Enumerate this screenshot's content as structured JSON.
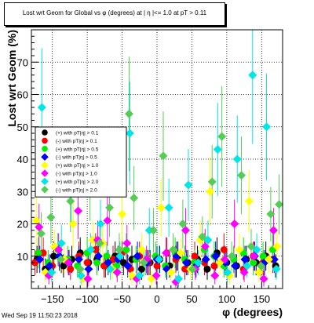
{
  "chart_data": {
    "type": "scatter",
    "title": "Lost wrt Geom for Global vs φ (degrees) at | η |<= 1.0 at pT > 0.11",
    "xlabel": "φ (degrees)",
    "ylabel": "Lost wrt Geom (%)",
    "xlim": [
      -180,
      180
    ],
    "ylim": [
      0,
      80
    ],
    "x_ticks": [
      -150,
      -100,
      -50,
      0,
      50,
      100,
      150
    ],
    "y_ticks": [
      10,
      20,
      30,
      40,
      50,
      60,
      70
    ],
    "grid": true,
    "legend_placement": "center-left",
    "series": [
      {
        "name": "(+) with pT|η| > 0.1",
        "color": "#000000",
        "marker": "circle",
        "points": [
          [
            -172,
            9
          ],
          [
            -160,
            6
          ],
          [
            -148,
            10
          ],
          [
            -134,
            7
          ],
          [
            -122,
            9
          ],
          [
            -110,
            11
          ],
          [
            -98,
            8
          ],
          [
            -86,
            9
          ],
          [
            -74,
            7
          ],
          [
            -60,
            10
          ],
          [
            -48,
            8
          ],
          [
            -36,
            9
          ],
          [
            -22,
            6
          ],
          [
            -10,
            8
          ],
          [
            4,
            9
          ],
          [
            18,
            7
          ],
          [
            30,
            10
          ],
          [
            44,
            8
          ],
          [
            58,
            9
          ],
          [
            72,
            6
          ],
          [
            86,
            11
          ],
          [
            100,
            8
          ],
          [
            114,
            7
          ],
          [
            128,
            9
          ],
          [
            142,
            8
          ],
          [
            156,
            10
          ],
          [
            170,
            7
          ]
        ]
      },
      {
        "name": "(-) with pT|η| > 0.1",
        "color": "#ff0000",
        "marker": "circle",
        "points": [
          [
            -175,
            8
          ],
          [
            -163,
            11
          ],
          [
            -150,
            7
          ],
          [
            -137,
            9
          ],
          [
            -124,
            6
          ],
          [
            -112,
            10
          ],
          [
            -100,
            8
          ],
          [
            -88,
            12
          ],
          [
            -76,
            7
          ],
          [
            -63,
            9
          ],
          [
            -50,
            11
          ],
          [
            -38,
            6
          ],
          [
            -25,
            10
          ],
          [
            -12,
            8
          ],
          [
            0,
            7
          ],
          [
            14,
            11
          ],
          [
            27,
            9
          ],
          [
            40,
            6
          ],
          [
            54,
            10
          ],
          [
            68,
            8
          ],
          [
            82,
            7
          ],
          [
            96,
            12
          ],
          [
            110,
            9
          ],
          [
            124,
            6
          ],
          [
            138,
            10
          ],
          [
            152,
            8
          ],
          [
            166,
            9
          ]
        ]
      },
      {
        "name": "(+) with pT|η| > 0.5",
        "color": "#00ee00",
        "marker": "circle",
        "points": [
          [
            -170,
            11
          ],
          [
            -156,
            8
          ],
          [
            -142,
            12
          ],
          [
            -128,
            9
          ],
          [
            -114,
            7
          ],
          [
            -100,
            11
          ],
          [
            -86,
            8
          ],
          [
            -72,
            10
          ],
          [
            -58,
            7
          ],
          [
            -44,
            12
          ],
          [
            -30,
            9
          ],
          [
            -16,
            8
          ],
          [
            -2,
            10
          ],
          [
            12,
            7
          ],
          [
            26,
            11
          ],
          [
            40,
            9
          ],
          [
            54,
            8
          ],
          [
            68,
            12
          ],
          [
            82,
            10
          ],
          [
            96,
            7
          ],
          [
            110,
            9
          ],
          [
            124,
            11
          ],
          [
            138,
            8
          ],
          [
            152,
            10
          ],
          [
            166,
            12
          ]
        ]
      },
      {
        "name": "(-) with pT|η| > 0.5",
        "color": "#0000ff",
        "marker": "diamond",
        "points": [
          [
            -168,
            9
          ],
          [
            -154,
            7
          ],
          [
            -140,
            10
          ],
          [
            -126,
            8
          ],
          [
            -112,
            9
          ],
          [
            -98,
            6
          ],
          [
            -84,
            10
          ],
          [
            -70,
            8
          ],
          [
            -56,
            9
          ],
          [
            -42,
            7
          ],
          [
            -28,
            10
          ],
          [
            -14,
            8
          ],
          [
            0,
            9
          ],
          [
            14,
            6
          ],
          [
            28,
            10
          ],
          [
            42,
            8
          ],
          [
            56,
            7
          ],
          [
            70,
            9
          ],
          [
            84,
            10
          ],
          [
            98,
            8
          ],
          [
            112,
            7
          ],
          [
            126,
            9
          ],
          [
            140,
            10
          ],
          [
            154,
            8
          ],
          [
            168,
            9
          ]
        ]
      },
      {
        "name": "(+) with pT|η| > 1.0",
        "color": "#ffff00",
        "marker": "diamond",
        "points": [
          [
            -173,
            21
          ],
          [
            -160,
            5
          ],
          [
            -147,
            13
          ],
          [
            -133,
            9
          ],
          [
            -120,
            20
          ],
          [
            -106,
            3
          ],
          [
            -92,
            15
          ],
          [
            -78,
            14
          ],
          [
            -64,
            6
          ],
          [
            -50,
            23
          ],
          [
            -36,
            4
          ],
          [
            -22,
            12
          ],
          [
            -8,
            3
          ],
          [
            6,
            25
          ],
          [
            20,
            5
          ],
          [
            34,
            11
          ],
          [
            48,
            6
          ],
          [
            62,
            15
          ],
          [
            76,
            30
          ],
          [
            90,
            8
          ],
          [
            104,
            4
          ],
          [
            118,
            12
          ],
          [
            132,
            27
          ],
          [
            146,
            5
          ],
          [
            160,
            9
          ],
          [
            172,
            13
          ]
        ]
      },
      {
        "name": "(-) with pT|η| > 1.0",
        "color": "#ff00ff",
        "marker": "diamond",
        "points": [
          [
            -169,
            19
          ],
          [
            -155,
            4
          ],
          [
            -141,
            12
          ],
          [
            -127,
            8
          ],
          [
            -113,
            24
          ],
          [
            -99,
            3
          ],
          [
            -85,
            15
          ],
          [
            -71,
            21
          ],
          [
            -57,
            5
          ],
          [
            -43,
            14
          ],
          [
            -29,
            3
          ],
          [
            -15,
            9
          ],
          [
            -1,
            4
          ],
          [
            13,
            11
          ],
          [
            27,
            2
          ],
          [
            41,
            18
          ],
          [
            55,
            6
          ],
          [
            69,
            13
          ],
          [
            83,
            4
          ],
          [
            97,
            9
          ],
          [
            111,
            20
          ],
          [
            125,
            5
          ],
          [
            139,
            10
          ],
          [
            153,
            3
          ],
          [
            167,
            18
          ]
        ]
      },
      {
        "name": "(+) with pT|η| > 2.0",
        "color": "#00e5e5",
        "marker": "diamond",
        "points": [
          [
            -165,
            56
          ],
          [
            -151,
            5
          ],
          [
            -137,
            14
          ],
          [
            -123,
            30
          ],
          [
            -109,
            4
          ],
          [
            -95,
            12
          ],
          [
            -81,
            20
          ],
          [
            -67,
            6
          ],
          [
            -53,
            10
          ],
          [
            -39,
            48
          ],
          [
            -25,
            4
          ],
          [
            -11,
            18
          ],
          [
            3,
            9
          ],
          [
            17,
            25
          ],
          [
            31,
            3
          ],
          [
            45,
            32
          ],
          [
            59,
            8
          ],
          [
            73,
            15
          ],
          [
            87,
            43
          ],
          [
            101,
            5
          ],
          [
            115,
            40
          ],
          [
            129,
            7
          ],
          [
            137,
            66
          ],
          [
            143,
            12
          ],
          [
            157,
            50
          ],
          [
            171,
            6
          ]
        ]
      },
      {
        "name": "(-) with pT|η| > 2.0",
        "color": "#55cc55",
        "marker": "diamond",
        "points": [
          [
            -166,
            17
          ],
          [
            -152,
            22
          ],
          [
            -138,
            9
          ],
          [
            -124,
            27
          ],
          [
            -110,
            6
          ],
          [
            -96,
            32
          ],
          [
            -82,
            14
          ],
          [
            -68,
            25
          ],
          [
            -54,
            12
          ],
          [
            -40,
            54
          ],
          [
            -33,
            28
          ],
          [
            -19,
            8
          ],
          [
            -5,
            18
          ],
          [
            9,
            41
          ],
          [
            23,
            12
          ],
          [
            37,
            20
          ],
          [
            51,
            6
          ],
          [
            65,
            16
          ],
          [
            79,
            33
          ],
          [
            93,
            47
          ],
          [
            107,
            10
          ],
          [
            121,
            35
          ],
          [
            135,
            13
          ],
          [
            149,
            7
          ],
          [
            163,
            23
          ],
          [
            175,
            26
          ]
        ]
      }
    ]
  },
  "footer": {
    "timestamp": "Wed Sep 19 11:50:23 2018"
  }
}
